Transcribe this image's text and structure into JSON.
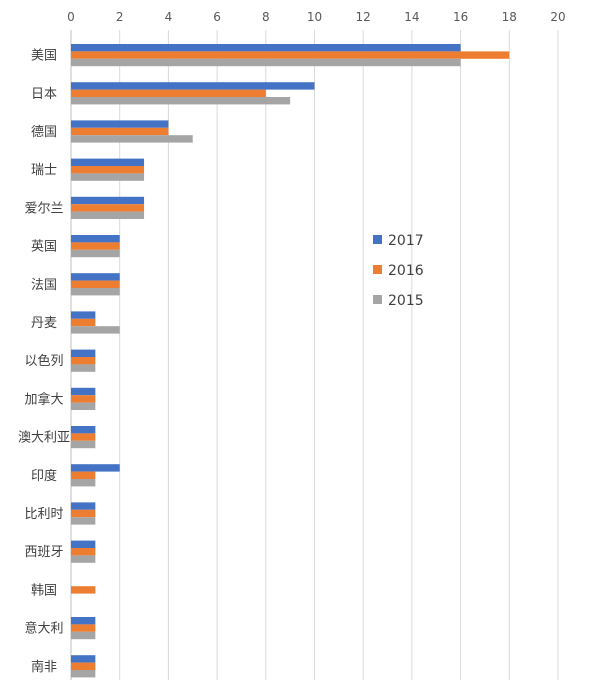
{
  "chart_data": {
    "type": "bar",
    "orientation": "horizontal",
    "categories": [
      "美国",
      "日本",
      "德国",
      "瑞士",
      "爱尔兰",
      "英国",
      "法国",
      "丹麦",
      "以色列",
      "加拿大",
      "澳大利亚",
      "印度",
      "比利时",
      "西班牙",
      "韩国",
      "意大利",
      "南非"
    ],
    "series": [
      {
        "name": "2017",
        "color": "#4472C4",
        "values": [
          16,
          10,
          4,
          3,
          3,
          2,
          2,
          1,
          1,
          1,
          1,
          2,
          1,
          1,
          0,
          1,
          1
        ]
      },
      {
        "name": "2016",
        "color": "#ED7D31",
        "values": [
          18,
          8,
          4,
          3,
          3,
          2,
          2,
          1,
          1,
          1,
          1,
          1,
          1,
          1,
          1,
          1,
          1
        ]
      },
      {
        "name": "2015",
        "color": "#A5A5A5",
        "values": [
          16,
          9,
          5,
          3,
          3,
          2,
          2,
          2,
          1,
          1,
          1,
          1,
          1,
          1,
          0,
          1,
          1
        ]
      }
    ],
    "xlim": [
      0,
      20
    ],
    "xticks": [
      "0",
      "2",
      "4",
      "6",
      "8",
      "10",
      "12",
      "14",
      "16",
      "18",
      "20"
    ],
    "x_axis_position": "top",
    "grid": true,
    "legend_position": "right-center",
    "title": "",
    "xlabel": "",
    "ylabel": ""
  }
}
